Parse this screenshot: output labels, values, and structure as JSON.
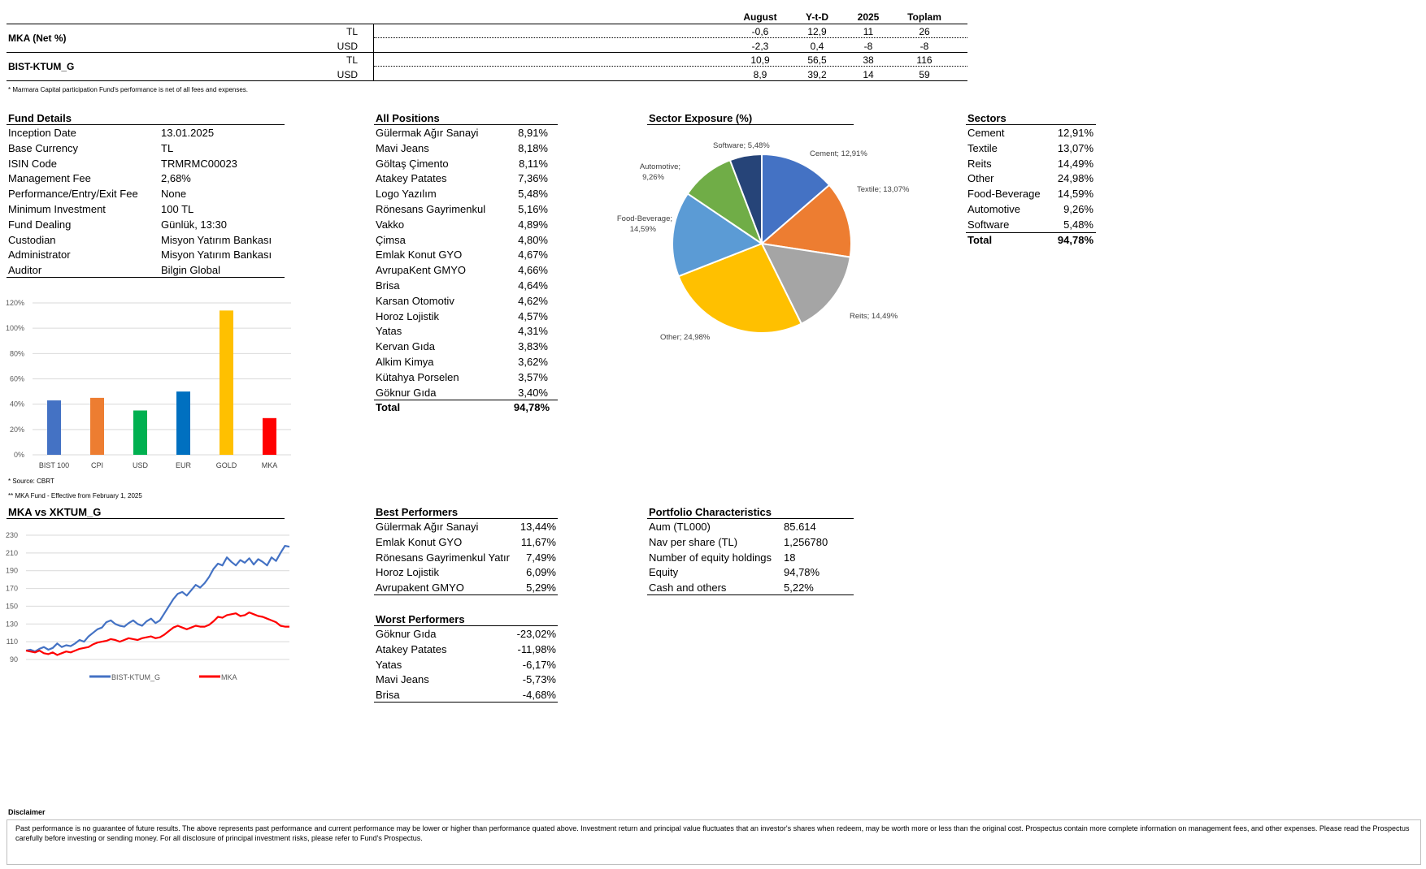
{
  "performance_table": {
    "columns": [
      "August",
      "Y-t-D",
      "2025",
      "Toplam"
    ],
    "groups": [
      {
        "name": "MKA (Net %)",
        "rows": [
          {
            "currency": "TL",
            "values": [
              "-0,6",
              "12,9",
              "11",
              "26"
            ]
          },
          {
            "currency": "USD",
            "values": [
              "-2,3",
              "0,4",
              "-8",
              "-8"
            ]
          }
        ]
      },
      {
        "name": "BIST-KTUM_G",
        "rows": [
          {
            "currency": "TL",
            "values": [
              "10,9",
              "56,5",
              "38",
              "116"
            ]
          },
          {
            "currency": "USD",
            "values": [
              "8,9",
              "39,2",
              "14",
              "59"
            ]
          }
        ]
      }
    ],
    "footnote": "* Marmara Capital participation Fund's performance is net of all fees and expenses."
  },
  "fund_details": {
    "title": "Fund Details",
    "rows": [
      {
        "label": "Inception Date",
        "value": "13.01.2025"
      },
      {
        "label": "Base Currency",
        "value": "TL"
      },
      {
        "label": "ISIN Code",
        "value": "TRMRMC00023"
      },
      {
        "label": "Management Fee",
        "value": "2,68%"
      },
      {
        "label": "Performance/Entry/Exit Fee",
        "value": "None"
      },
      {
        "label": "Minimum Investment",
        "value": "100 TL"
      },
      {
        "label": "Fund Dealing",
        "value": "Günlük, 13:30"
      },
      {
        "label": "Custodian",
        "value": "Misyon Yatırım Bankası"
      },
      {
        "label": "Administrator",
        "value": "Misyon Yatırım Bankası"
      },
      {
        "label": "Auditor",
        "value": "Bilgin Global"
      }
    ]
  },
  "all_positions": {
    "title": "All Positions",
    "rows": [
      {
        "name": "Gülermak Ağır Sanayi",
        "value": "8,91%"
      },
      {
        "name": "Mavi Jeans",
        "value": "8,18%"
      },
      {
        "name": "Göltaş Çimento",
        "value": "8,11%"
      },
      {
        "name": "Atakey Patates",
        "value": "7,36%"
      },
      {
        "name": "Logo Yazılım",
        "value": "5,48%"
      },
      {
        "name": "Rönesans Gayrimenkul",
        "value": "5,16%"
      },
      {
        "name": "Vakko",
        "value": "4,89%"
      },
      {
        "name": "Çimsa",
        "value": "4,80%"
      },
      {
        "name": "Emlak Konut GYO",
        "value": "4,67%"
      },
      {
        "name": "AvrupaKent GMYO",
        "value": "4,66%"
      },
      {
        "name": "Brisa",
        "value": "4,64%"
      },
      {
        "name": "Karsan Otomotiv",
        "value": "4,62%"
      },
      {
        "name": "Horoz Lojistik",
        "value": "4,57%"
      },
      {
        "name": "Yatas",
        "value": "4,31%"
      },
      {
        "name": "Kervan Gıda",
        "value": "3,83%"
      },
      {
        "name": "Alkim Kimya",
        "value": "3,62%"
      },
      {
        "name": "Kütahya Porselen",
        "value": "3,57%"
      },
      {
        "name": "Göknur Gıda",
        "value": "3,40%"
      }
    ],
    "total_label": "Total",
    "total_value": "94,78%"
  },
  "sectors": {
    "title": "Sectors",
    "rows": [
      {
        "name": "Cement",
        "value": "12,91%"
      },
      {
        "name": "Textile",
        "value": "13,07%"
      },
      {
        "name": "Reits",
        "value": "14,49%"
      },
      {
        "name": "Other",
        "value": "24,98%"
      },
      {
        "name": "Food-Beverage",
        "value": "14,59%"
      },
      {
        "name": "Automotive",
        "value": "9,26%"
      },
      {
        "name": "Software",
        "value": "5,48%"
      }
    ],
    "total_label": "Total",
    "total_value": "94,78%"
  },
  "best_performers": {
    "title": "Best Performers",
    "rows": [
      {
        "name": "Gülermak Ağır Sanayi",
        "value": "13,44%"
      },
      {
        "name": "Emlak Konut GYO",
        "value": "11,67%"
      },
      {
        "name": "Rönesans Gayrimenkul Yatır",
        "value": "7,49%"
      },
      {
        "name": "Horoz Lojistik",
        "value": "6,09%"
      },
      {
        "name": "Avrupakent GMYO",
        "value": "5,29%"
      }
    ]
  },
  "worst_performers": {
    "title": "Worst Performers",
    "rows": [
      {
        "name": "Göknur Gıda",
        "value": "-23,02%"
      },
      {
        "name": "Atakey Patates",
        "value": "-11,98%"
      },
      {
        "name": "Yatas",
        "value": "-6,17%"
      },
      {
        "name": "Mavi Jeans",
        "value": "-5,73%"
      },
      {
        "name": "Brisa",
        "value": "-4,68%"
      }
    ]
  },
  "portfolio_characteristics": {
    "title": "Portfolio Characteristics",
    "rows": [
      {
        "label": "Aum (TL000)",
        "value": "85.614"
      },
      {
        "label": "Nav per share (TL)",
        "value": "1,256780"
      },
      {
        "label": "Number of equity holdings",
        "value": "18"
      },
      {
        "label": "Equity",
        "value": "94,78%"
      },
      {
        "label": "Cash and others",
        "value": "5,22%"
      }
    ]
  },
  "bar_footnotes": {
    "source": "* Source: CBRT",
    "effective": "** MKA Fund - Effective from February 1, 2025"
  },
  "line_title": "MKA vs XKTUM_G",
  "disclaimer": {
    "title": "Disclaimer",
    "text": "Past performance is no guarantee of future results. The above represents past performance and current performance may be lower or higher than performance quated above. Investment return and principal value fluctuates that an investor's shares when redeem, may be worth more or less than the original cost. Prospectus contain  more complete information on management fees, and other expenses. Please read the Prospectus carefully before investing or sending money. For all disclosure of principal investment risks, please refer to Fund's Prospectus."
  },
  "chart_data": [
    {
      "type": "pie",
      "title": "Sector Exposure (%)",
      "labels": [
        "Cement; 12,91%",
        "Textile; 13,07%",
        "Reits; 14,49%",
        "Other; 24,98%",
        "Food-Beverage; 14,59%",
        "Automotive; 9,26%",
        "Software; 5,48%"
      ],
      "values": [
        12.91,
        13.07,
        14.49,
        24.98,
        14.59,
        9.26,
        5.48
      ],
      "colors": [
        "#4472C4",
        "#ED7D31",
        "#A5A5A5",
        "#FFC000",
        "#5B9BD5",
        "#70AD47",
        "#264478"
      ]
    },
    {
      "type": "bar",
      "categories": [
        "BIST 100",
        "CPI",
        "USD",
        "EUR",
        "GOLD",
        "MKA"
      ],
      "values": [
        43,
        45,
        35,
        50,
        114,
        29
      ],
      "colors": [
        "#4472C4",
        "#ED7D31",
        "#00B050",
        "#0070C0",
        "#FFC000",
        "#FF0000"
      ],
      "ylim": [
        0,
        120
      ],
      "yticks": [
        "0%",
        "20%",
        "40%",
        "60%",
        "80%",
        "100%",
        "120%"
      ],
      "grid": true
    },
    {
      "type": "line",
      "ylim": [
        90,
        230
      ],
      "yticks": [
        "90",
        "110",
        "130",
        "150",
        "170",
        "190",
        "210",
        "230"
      ],
      "legend_position": "bottom",
      "series": [
        {
          "name": "BIST-KTUM_G",
          "color": "#4472C4",
          "values": [
            100,
            101,
            99,
            102,
            104,
            101,
            103,
            108,
            104,
            106,
            105,
            108,
            112,
            110,
            116,
            120,
            124,
            126,
            132,
            134,
            130,
            128,
            127,
            131,
            134,
            130,
            128,
            133,
            136,
            131,
            134,
            142,
            150,
            158,
            164,
            166,
            162,
            168,
            174,
            171,
            176,
            183,
            192,
            198,
            196,
            205,
            200,
            196,
            202,
            199,
            204,
            197,
            203,
            200,
            196,
            205,
            201,
            210,
            218,
            217
          ]
        },
        {
          "name": "MKA",
          "color": "#FF0000",
          "values": [
            100,
            99,
            98,
            100,
            97,
            96,
            98,
            95,
            97,
            99,
            98,
            100,
            102,
            103,
            104,
            107,
            109,
            110,
            111,
            113,
            112,
            110,
            112,
            114,
            113,
            112,
            114,
            115,
            116,
            114,
            115,
            118,
            122,
            126,
            128,
            126,
            124,
            126,
            128,
            127,
            127,
            129,
            133,
            138,
            137,
            140,
            141,
            142,
            139,
            140,
            143,
            141,
            139,
            138,
            136,
            134,
            132,
            128,
            127,
            127
          ]
        }
      ]
    }
  ]
}
